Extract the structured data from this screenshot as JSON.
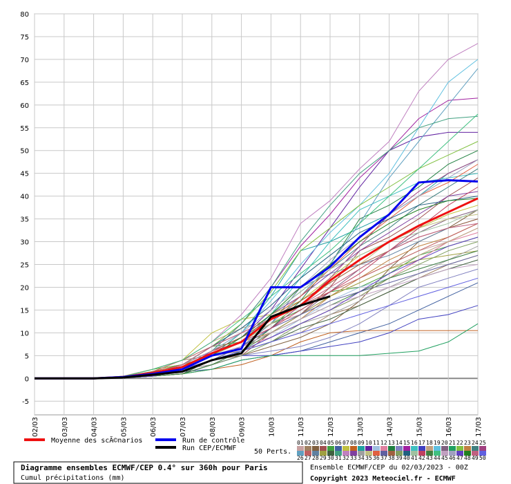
{
  "chart_data": {
    "type": "line",
    "title": "Diagramme ensembles ECMWF/CEP 0.4° sur 360h pour Paris",
    "subtitle": "Cumul précipitations (mm)",
    "run_info": "Ensemble ECMWF/CEP du 02/03/2023 - 00Z",
    "copyright": "Copyright 2023 Meteociel.fr - ECMWF",
    "perts_label": "50 Perts.",
    "categories": [
      "02/03",
      "03/03",
      "04/03",
      "05/03",
      "06/03",
      "07/03",
      "08/03",
      "09/03",
      "10/03",
      "11/03",
      "12/03",
      "13/03",
      "14/03",
      "15/03",
      "16/03",
      "17/03"
    ],
    "ylim": [
      -8,
      80
    ],
    "yticks": [
      -5,
      0,
      5,
      10,
      15,
      20,
      25,
      30,
      35,
      40,
      45,
      50,
      55,
      60,
      65,
      70,
      75,
      80
    ],
    "grid": true,
    "series": [
      {
        "name": "Moyenne des scÃ©narios",
        "color": "#ee1111",
        "width": 3,
        "values": [
          0,
          0,
          0,
          0.3,
          1.2,
          2.5,
          5.5,
          8,
          13,
          16,
          21.5,
          26,
          30,
          33.5,
          36.5,
          39.5
        ]
      },
      {
        "name": "Run de contrôle",
        "color": "#0000ee",
        "width": 3,
        "values": [
          0,
          0,
          0,
          0.3,
          1,
          2,
          5,
          6.5,
          20,
          20,
          24.5,
          31,
          36,
          43,
          43.5,
          43.2
        ]
      },
      {
        "name": "Run CEP/ECMWF",
        "color": "#000000",
        "width": 3,
        "values": [
          0,
          0,
          0,
          0.2,
          0.8,
          1.5,
          4,
          5.5,
          13.5,
          16,
          18,
          null,
          null,
          null,
          null,
          null
        ]
      },
      {
        "name": "01",
        "color": "#c8a0a0",
        "values": [
          0,
          0,
          0,
          0.2,
          1,
          3,
          6,
          9,
          12,
          14,
          18,
          22,
          25,
          28,
          30,
          33
        ]
      },
      {
        "name": "02",
        "color": "#a08060",
        "values": [
          0,
          0,
          0,
          0.5,
          2,
          4,
          5,
          6,
          8,
          10,
          14,
          16,
          19,
          22,
          25,
          27
        ]
      },
      {
        "name": "03",
        "color": "#806040",
        "values": [
          0,
          0,
          0,
          0.1,
          1,
          2,
          4,
          5,
          7,
          9,
          12,
          17,
          24,
          30,
          33,
          37
        ]
      },
      {
        "name": "04",
        "color": "#a05050",
        "values": [
          0,
          0,
          0,
          0.3,
          1,
          2,
          3,
          5,
          10,
          14,
          20,
          28,
          31,
          35,
          40,
          44
        ]
      },
      {
        "name": "05",
        "color": "#40a040",
        "values": [
          0,
          0,
          0,
          0.4,
          2,
          3,
          7,
          8,
          12,
          15,
          19,
          20,
          23,
          27,
          29,
          31
        ]
      },
      {
        "name": "06",
        "color": "#4060a0",
        "values": [
          0,
          0,
          0,
          0.2,
          1,
          1.5,
          2,
          4,
          5,
          6,
          8,
          10,
          12,
          15,
          18,
          21
        ]
      },
      {
        "name": "07",
        "color": "#c0c040",
        "values": [
          0,
          0,
          0,
          0.5,
          2,
          4,
          10,
          13,
          14,
          17,
          22,
          27,
          30,
          33,
          36,
          38
        ]
      },
      {
        "name": "08",
        "color": "#c06020",
        "values": [
          0,
          0,
          0,
          0.1,
          0.5,
          1,
          2,
          3,
          5,
          8,
          10,
          10.5,
          10.5,
          10.5,
          10.5,
          10.5
        ]
      },
      {
        "name": "09",
        "color": "#20a0a0",
        "values": [
          0,
          0,
          0,
          0.2,
          1,
          2,
          5,
          10,
          18,
          28,
          30,
          33,
          36,
          40,
          45,
          48
        ]
      },
      {
        "name": "10",
        "color": "#6020a0",
        "values": [
          0,
          0,
          0,
          0.3,
          1,
          3,
          6,
          9,
          15,
          24,
          33,
          42,
          50,
          53,
          54,
          54
        ]
      },
      {
        "name": "11",
        "color": "#a0c0e0",
        "values": [
          0,
          0,
          0,
          0.1,
          0.5,
          2,
          4,
          6,
          9,
          13,
          17,
          20,
          22,
          24,
          26,
          28
        ]
      },
      {
        "name": "12",
        "color": "#e080a0",
        "values": [
          0,
          0,
          0,
          0.4,
          1.5,
          3,
          5,
          7,
          9,
          12,
          15,
          18,
          22,
          26,
          30,
          32
        ]
      },
      {
        "name": "13",
        "color": "#208040",
        "values": [
          0,
          0,
          0,
          0.2,
          1,
          2,
          4,
          6,
          11,
          17,
          25,
          35,
          38,
          42,
          47,
          50
        ]
      },
      {
        "name": "14",
        "color": "#8080c0",
        "values": [
          0,
          0,
          0,
          0.1,
          0.5,
          1,
          3,
          5,
          6,
          7,
          9,
          12,
          16,
          20,
          22,
          24
        ]
      },
      {
        "name": "15",
        "color": "#a020a0",
        "values": [
          0,
          0,
          0,
          0.3,
          1,
          2,
          6,
          12,
          20,
          29,
          36,
          44,
          50,
          57,
          61,
          61.5
        ]
      },
      {
        "name": "16",
        "color": "#40c0c0",
        "values": [
          0,
          0,
          0,
          0.2,
          1,
          2,
          5,
          8,
          14,
          22,
          30,
          37,
          40,
          43,
          44,
          45
        ]
      },
      {
        "name": "17",
        "color": "#4040c0",
        "values": [
          0,
          0,
          0,
          0.1,
          0.5,
          1,
          3,
          5,
          5,
          6,
          7,
          8,
          10,
          13,
          14,
          16
        ]
      },
      {
        "name": "18",
        "color": "#c0a080",
        "values": [
          0,
          0,
          0,
          0.5,
          2,
          4,
          8,
          11,
          13,
          16,
          18,
          21,
          24,
          27,
          30,
          33
        ]
      },
      {
        "name": "19",
        "color": "#60c0e0",
        "values": [
          0,
          0,
          0,
          0.2,
          1,
          3,
          6,
          10,
          17,
          25,
          32,
          38,
          45,
          55,
          65,
          70
        ]
      },
      {
        "name": "20",
        "color": "#806080",
        "values": [
          0,
          0,
          0,
          0.3,
          1,
          2,
          4,
          7,
          10,
          14,
          19,
          24,
          28,
          32,
          35,
          37
        ]
      },
      {
        "name": "21",
        "color": "#20a060",
        "values": [
          0,
          0,
          0,
          0.1,
          0.5,
          1,
          2,
          4,
          5,
          5,
          5,
          5,
          5.5,
          6,
          8,
          12
        ]
      },
      {
        "name": "22",
        "color": "#80c040",
        "values": [
          0,
          0,
          0,
          0.4,
          2,
          3,
          7,
          12,
          19,
          28,
          33,
          38,
          42,
          46,
          49,
          52
        ]
      },
      {
        "name": "23",
        "color": "#c08040",
        "values": [
          0,
          0,
          0,
          0.2,
          1,
          2,
          5,
          8,
          10,
          13,
          18,
          22,
          26,
          29,
          31,
          34
        ]
      },
      {
        "name": "24",
        "color": "#408080",
        "values": [
          0,
          0,
          0,
          0.3,
          1,
          3,
          6,
          9,
          14,
          19,
          24,
          29,
          33,
          38,
          42,
          46
        ]
      },
      {
        "name": "25",
        "color": "#a04080",
        "values": [
          0,
          0,
          0,
          0.1,
          0.5,
          2,
          4,
          7,
          11,
          16,
          22,
          29,
          36,
          41,
          45,
          48
        ]
      },
      {
        "name": "26",
        "color": "#60a0c0",
        "values": [
          0,
          0,
          0,
          0.2,
          1,
          2,
          5,
          8,
          12,
          18,
          25,
          34,
          44,
          52,
          60,
          68
        ]
      },
      {
        "name": "27",
        "color": "#c06060",
        "values": [
          0,
          0,
          0,
          0.4,
          1.5,
          4,
          7,
          10,
          13,
          16,
          19,
          22,
          25,
          28,
          31,
          34
        ]
      },
      {
        "name": "28",
        "color": "#6080a0",
        "values": [
          0,
          0,
          0,
          0.2,
          1,
          2,
          4,
          7,
          12,
          20,
          23,
          25,
          27,
          30,
          33,
          35
        ]
      },
      {
        "name": "29",
        "color": "#a0a040",
        "values": [
          0,
          0,
          0,
          0.3,
          1,
          3,
          5,
          7,
          10,
          14,
          18,
          21,
          24,
          26,
          27,
          28
        ]
      },
      {
        "name": "30",
        "color": "#406040",
        "values": [
          0,
          0,
          0,
          0.1,
          0.5,
          1,
          4,
          6,
          8,
          11,
          13,
          16,
          19,
          22,
          24,
          26
        ]
      },
      {
        "name": "31",
        "color": "#40a080",
        "values": [
          0,
          0,
          0,
          0.2,
          1,
          3,
          6,
          12,
          20,
          30,
          38,
          45,
          50,
          55,
          57,
          57.5
        ]
      },
      {
        "name": "32",
        "color": "#c080c0",
        "values": [
          0,
          0,
          0,
          0.4,
          2,
          4,
          8,
          14,
          22,
          34,
          39,
          46,
          52,
          63,
          70,
          73.5
        ]
      },
      {
        "name": "33",
        "color": "#8040a0",
        "values": [
          0,
          0,
          0,
          0.3,
          1,
          2,
          5,
          9,
          14,
          18,
          23,
          28,
          32,
          36,
          40,
          41
        ]
      },
      {
        "name": "34",
        "color": "#a0a0a0",
        "values": [
          0,
          0,
          0,
          0.1,
          0.5,
          2,
          3,
          6,
          9,
          12,
          14,
          17,
          20,
          23,
          26,
          29
        ]
      },
      {
        "name": "35",
        "color": "#c0c080",
        "values": [
          0,
          0,
          0,
          0.2,
          1,
          2,
          5,
          8,
          12,
          16,
          21,
          25,
          30,
          33,
          35,
          36
        ]
      },
      {
        "name": "36",
        "color": "#e06040",
        "values": [
          0,
          0,
          0,
          0.3,
          1.5,
          3,
          6,
          9,
          13,
          18,
          24,
          30,
          35,
          40,
          43,
          47
        ]
      },
      {
        "name": "37",
        "color": "#6060a0",
        "values": [
          0,
          0,
          0,
          0.2,
          1,
          2,
          4,
          7,
          11,
          14,
          17,
          19,
          21,
          23,
          25,
          27
        ]
      },
      {
        "name": "38",
        "color": "#a06040",
        "values": [
          0,
          0,
          0,
          0.4,
          1.5,
          3,
          6,
          9,
          13,
          17,
          21,
          25,
          28,
          31,
          33,
          35
        ]
      },
      {
        "name": "39",
        "color": "#80a060",
        "values": [
          0,
          0,
          0,
          0.1,
          0.5,
          1,
          3,
          5,
          8,
          12,
          15,
          18,
          22,
          25,
          28,
          30
        ]
      },
      {
        "name": "40",
        "color": "#206080",
        "values": [
          0,
          0,
          0,
          0.3,
          1,
          3,
          7,
          11,
          16,
          22,
          27,
          32,
          35,
          38,
          39,
          40
        ]
      },
      {
        "name": "41",
        "color": "#a0c0a0",
        "values": [
          0,
          0,
          0,
          0.2,
          1,
          2,
          5,
          9,
          14,
          19,
          24,
          27,
          30,
          32,
          34,
          37
        ]
      },
      {
        "name": "42",
        "color": "#c04060",
        "values": [
          0,
          0,
          0,
          0.3,
          1,
          3,
          6,
          8,
          11,
          15,
          19,
          23,
          28,
          33,
          38,
          42
        ]
      },
      {
        "name": "43",
        "color": "#408040",
        "values": [
          0,
          0,
          0,
          0.1,
          0.5,
          1,
          3,
          6,
          10,
          13,
          16,
          19,
          22,
          24,
          26,
          28
        ]
      },
      {
        "name": "44",
        "color": "#40c080",
        "values": [
          0,
          0,
          0,
          0.4,
          2,
          4,
          8,
          13,
          18,
          23,
          28,
          34,
          40,
          46,
          52,
          58
        ]
      },
      {
        "name": "45",
        "color": "#c0a0c0",
        "values": [
          0,
          0,
          0,
          0.2,
          1,
          2,
          5,
          7,
          10,
          13,
          16,
          18,
          20,
          22,
          24,
          25
        ]
      },
      {
        "name": "46",
        "color": "#a0a0c0",
        "values": [
          0,
          0,
          0,
          0.3,
          1,
          3,
          6,
          10,
          15,
          20,
          26,
          31,
          36,
          40,
          44,
          48
        ]
      },
      {
        "name": "47",
        "color": "#6040c0",
        "values": [
          0,
          0,
          0,
          0.1,
          0.5,
          2,
          4,
          6,
          9,
          12,
          15,
          19,
          23,
          26,
          29,
          31
        ]
      },
      {
        "name": "48",
        "color": "#208020",
        "values": [
          0,
          0,
          0,
          0.2,
          1,
          2,
          5,
          9,
          14,
          20,
          25,
          30,
          34,
          37,
          39,
          39.5
        ]
      },
      {
        "name": "49",
        "color": "#c06080",
        "values": [
          0,
          0,
          0,
          0.3,
          1,
          3,
          7,
          10,
          13,
          16,
          20,
          24,
          28,
          31,
          33,
          34
        ]
      },
      {
        "name": "50",
        "color": "#6060e0",
        "values": [
          0,
          0,
          0,
          0.2,
          1,
          2,
          4,
          6,
          8,
          10,
          12,
          14,
          16,
          18,
          20,
          22
        ]
      }
    ]
  }
}
